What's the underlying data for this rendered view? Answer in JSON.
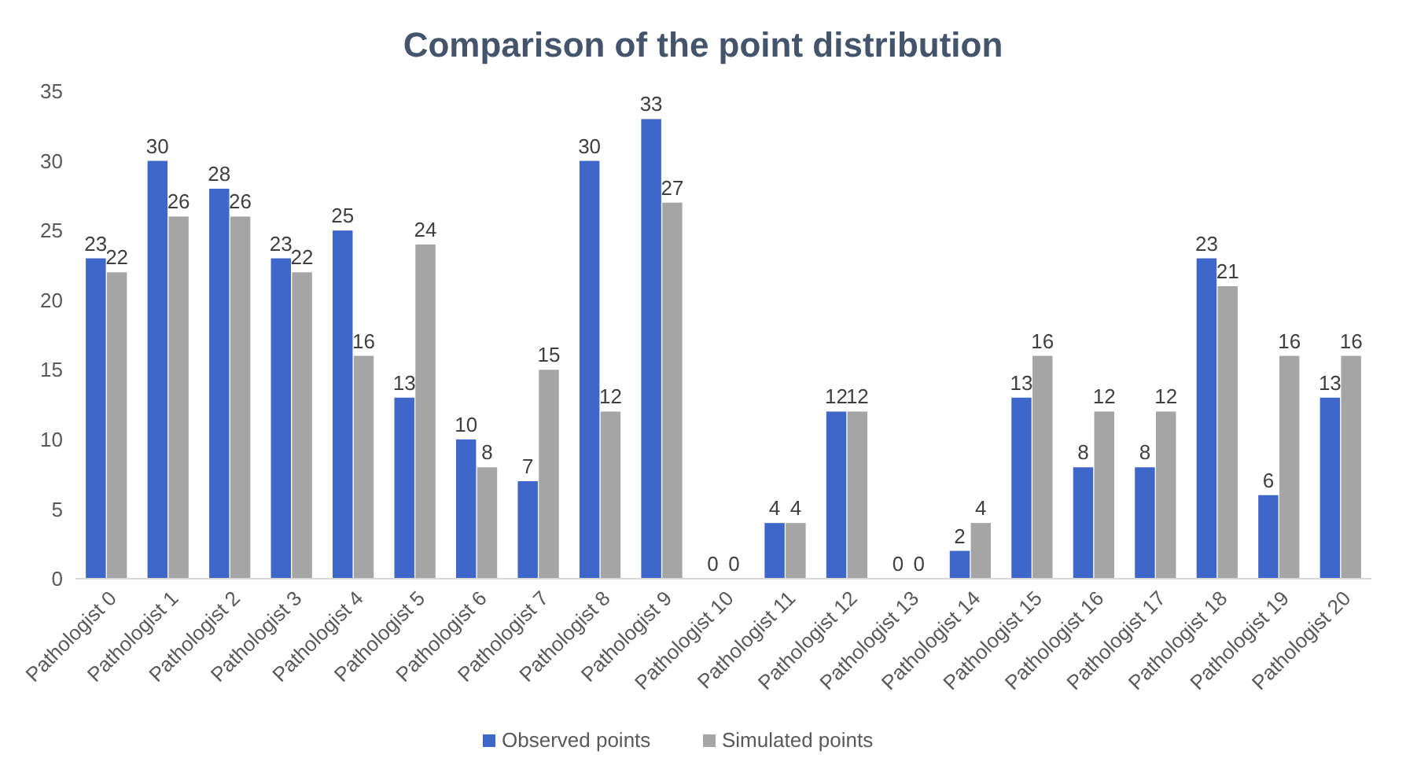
{
  "chart_data": {
    "type": "bar",
    "title": "Comparison of the point distribution",
    "categories": [
      "Pathologist 0",
      "Pathologist 1",
      "Pathologist 2",
      "Pathologist 3",
      "Pathologist 4",
      "Pathologist 5",
      "Pathologist 6",
      "Pathologist 7",
      "Pathologist 8",
      "Pathologist 9",
      "Pathologist 10",
      "Pathologist 11",
      "Pathologist 12",
      "Pathologist 13",
      "Pathologist 14",
      "Pathologist 15",
      "Pathologist 16",
      "Pathologist 17",
      "Pathologist 18",
      "Pathologist 19",
      "Pathologist 20"
    ],
    "series": [
      {
        "name": "Observed points",
        "color": "#3f67c9",
        "values": [
          23,
          30,
          28,
          23,
          25,
          13,
          10,
          7,
          30,
          33,
          0,
          4,
          12,
          0,
          2,
          13,
          8,
          8,
          23,
          6,
          13
        ]
      },
      {
        "name": "Simulated points",
        "color": "#a5a5a5",
        "values": [
          22,
          26,
          26,
          22,
          16,
          24,
          8,
          15,
          12,
          27,
          0,
          4,
          12,
          0,
          4,
          16,
          12,
          12,
          21,
          16,
          16
        ]
      }
    ],
    "ylim": [
      0,
      35
    ],
    "yticks": [
      0,
      5,
      10,
      15,
      20,
      25,
      30,
      35
    ],
    "data_labels": true,
    "legend": "bottom"
  }
}
